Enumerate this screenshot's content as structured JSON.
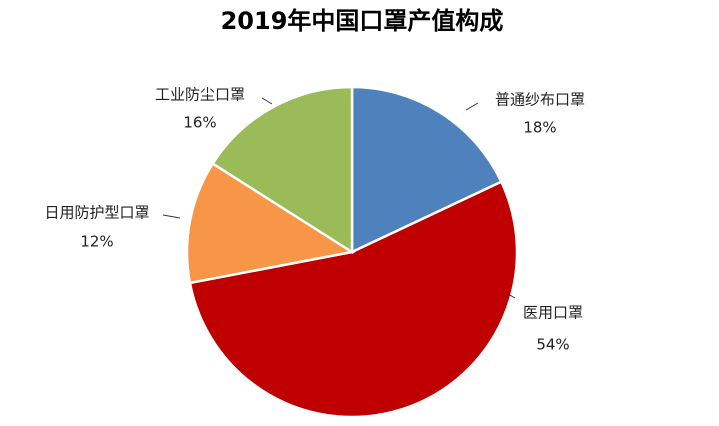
{
  "chart_data": {
    "type": "pie",
    "title": "2019年中国口罩产值构成",
    "categories": [
      "普通纱布口罩",
      "医用口罩",
      "日用防护型口罩",
      "工业防尘口罩"
    ],
    "values": [
      18,
      54,
      12,
      16
    ],
    "value_labels": [
      "18%",
      "54%",
      "12%",
      "16%"
    ],
    "colors": [
      "#4f81bd",
      "#c00000",
      "#f79646",
      "#9bbb59"
    ]
  }
}
